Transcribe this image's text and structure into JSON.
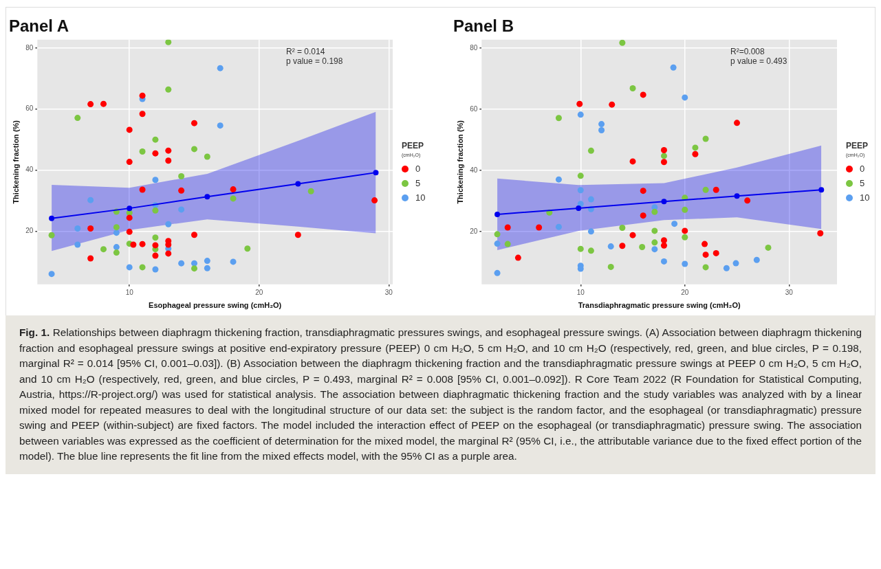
{
  "chart_data": [
    {
      "type": "scatter",
      "title": "Panel A",
      "xlabel": "Esophageal pressure swing (cmH₂O)",
      "ylabel": "Thickening fraction (%)",
      "legend_title": "PEEP\n(cmH₂O)",
      "legend": "right",
      "grid": true,
      "marker": "circle",
      "xlim": [
        2.9,
        30.3
      ],
      "xticks": [
        10,
        20,
        30
      ],
      "ylim": [
        2.6,
        82.7
      ],
      "yticks": [
        20,
        40,
        60,
        80
      ],
      "annotations": [
        "R² = 0.014",
        "p value = 0.198"
      ],
      "series": [
        {
          "name": "0",
          "color": "#ff0000",
          "x": [
            7,
            8,
            11,
            11,
            10,
            15,
            10,
            12,
            13,
            13,
            11,
            14,
            10,
            7,
            10,
            15,
            10.3,
            11,
            12,
            13,
            13,
            12,
            13,
            7,
            18,
            23,
            28.9
          ],
          "values": [
            61.6,
            61.7,
            64.4,
            58.4,
            53.2,
            55.4,
            42.7,
            45.5,
            46.4,
            43.1,
            33.6,
            33.3,
            24.4,
            20.9,
            19.8,
            18.8,
            15.6,
            15.8,
            15.4,
            16.8,
            15.6,
            12.0,
            12.7,
            11.1,
            33.7,
            18.8,
            30.1
          ]
        },
        {
          "name": "5",
          "color": "#7cc642",
          "x": [
            13,
            13,
            6,
            12,
            11,
            15,
            16,
            14,
            9,
            10,
            12,
            9,
            4,
            10,
            12,
            12,
            8,
            9,
            11,
            15,
            18,
            24,
            19.1
          ],
          "values": [
            81.9,
            66.4,
            57.1,
            50.0,
            46.1,
            46.9,
            44.4,
            38.0,
            26.4,
            26.0,
            26.8,
            21.3,
            18.7,
            15.9,
            17.9,
            14.1,
            14.1,
            13.0,
            8.2,
            7.8,
            30.7,
            33.1,
            14.3
          ]
        },
        {
          "name": "10",
          "color": "#5b9ff0",
          "x": [
            11,
            12,
            7,
            12,
            14,
            13,
            6,
            9,
            6,
            9,
            13,
            4,
            10,
            12,
            14,
            15,
            16,
            16,
            17,
            17,
            18
          ],
          "values": [
            63.3,
            36.8,
            30.2,
            28.5,
            27.1,
            22.3,
            20.9,
            19.5,
            15.6,
            14.8,
            14.3,
            6.0,
            8.2,
            7.5,
            9.5,
            9.5,
            10.3,
            7.9,
            73.4,
            54.6,
            10.0
          ]
        },
        {
          "type": "line",
          "color": "#0000ee",
          "x": [
            4,
            10,
            16,
            23,
            29
          ],
          "values": [
            24.2,
            27.5,
            31.3,
            35.5,
            39.2
          ],
          "lower": [
            13.5,
            20.4,
            23.9,
            21.5,
            19.3
          ],
          "upper": [
            35.2,
            34.2,
            38.8,
            49.6,
            59.1
          ]
        }
      ]
    },
    {
      "type": "scatter",
      "title": "Panel B",
      "xlabel": "Transdiaphragmatic pressure swing (cmH₂O)",
      "ylabel": "Thickening fraction (%)",
      "legend_title": "PEEP\n(cmH₂O)",
      "legend": "right",
      "grid": true,
      "marker": "circle",
      "xlim": [
        0.5,
        34.6
      ],
      "xticks": [
        10,
        20,
        30
      ],
      "ylim": [
        2.7,
        82.7
      ],
      "yticks": [
        20,
        40,
        60,
        80
      ],
      "annotations": [
        "R²=0.008",
        "p value = 0.493",
        "Fig. 1.",
        "Relationships between diaphragm thickening fraction, transdiaphragmatic pressures swings, and esophageal pressure swings. (A) Association between diaphragm thickening fraction and esophageal pressure swings at positive end-expiratory pressure (PEEP) 0 cm H₂O, 5 cm H₂O, and 10 cm H₂O (respectively, red, green, and blue circles, P = 0.198, marginal R² = 0.014 [95% CI, 0.001–0.03]). (B) Association between the diaphragm thickening fraction and the transdiaphragmatic pressure swings at PEEP 0 cm H₂O, 5 cm H₂O, and 10 cm H₂O (respectively, red, green, and blue circles, P = 0.493, marginal R² = 0.008 [95% CI, 0.001–0.092]). R Core Team 2022 (R Foundation for Statistical Computing, Austria, https://R-project.org/) was used for statistical analysis. The association between diaphragmatic thickening fraction and the study variables was analyzed with by a linear mixed model for repeated measures to deal with the longitudinal structure of our data set: the subject is the random factor, and the esophageal (or transdiaphragmatic) pressure swing and PEEP (within-subject) are fixed factors. The model included the interaction effect of PEEP on the esophageal (or transdiaphragmatic) pressure swing. The association between variables was expressed as the coefficient of determination for the mixed model, the marginal R² (95% CI, i.e., the attributable variance due to the fixed effect portion of the model). The blue line represents the fit line from the mixed effects model, with the 95% CI as a purple area."
      ],
      "series": [
        {
          "name": "0",
          "color": "#ff0000",
          "x": [
            3,
            6,
            4,
            9.9,
            13,
            16,
            15,
            16,
            16,
            14,
            15,
            18,
            18,
            18,
            18,
            21,
            25,
            23,
            26,
            33,
            20,
            21.9,
            22,
            23
          ],
          "values": [
            21.3,
            21.3,
            11.4,
            61.7,
            61.5,
            64.7,
            42.9,
            33.3,
            25.2,
            15.3,
            18.8,
            46.6,
            42.7,
            17.1,
            15.4,
            45.3,
            55.5,
            33.6,
            30.1,
            19.4,
            20.2,
            15.9,
            12.4,
            12.9
          ]
        },
        {
          "name": "5",
          "color": "#7cc642",
          "x": [
            14,
            15,
            7.9,
            11,
            10,
            7,
            17.1,
            14,
            17.1,
            2,
            3,
            10,
            11,
            15.9,
            17.1,
            12.9,
            18,
            21,
            22,
            22,
            20,
            20,
            20,
            22,
            28
          ],
          "values": [
            81.7,
            66.8,
            57.1,
            46.4,
            38.2,
            26.2,
            26.4,
            21.2,
            20.2,
            19.1,
            15.9,
            14.3,
            13.7,
            14.9,
            16.4,
            8.4,
            44.7,
            47.4,
            50.3,
            33.6,
            31.0,
            27.1,
            18.1,
            8.3,
            14.7
          ]
        },
        {
          "name": "10",
          "color": "#5b9ff0",
          "x": [
            10,
            12,
            12,
            7.9,
            10,
            10,
            11,
            11,
            11,
            7.9,
            2,
            2,
            10,
            10,
            12.9,
            17.1,
            17.1,
            18,
            18.9,
            20,
            19,
            20,
            24,
            24.9,
            26.9
          ],
          "values": [
            58.2,
            55.1,
            53.1,
            37.0,
            33.5,
            29.0,
            30.5,
            27.3,
            20.0,
            21.5,
            16.0,
            6.4,
            8.8,
            7.8,
            15.1,
            27.9,
            14.2,
            10.2,
            73.6,
            63.8,
            22.5,
            9.4,
            8.0,
            9.6,
            10.7
          ]
        },
        {
          "type": "line",
          "color": "#0000ee",
          "x": [
            2,
            9.8,
            18,
            25,
            33.1
          ],
          "values": [
            25.6,
            27.6,
            29.8,
            31.6,
            33.6
          ],
          "lower": [
            13.9,
            20.2,
            23.7,
            24.6,
            20.8
          ],
          "upper": [
            37.3,
            35.2,
            35.8,
            40.9,
            48.1
          ]
        }
      ]
    }
  ]
}
